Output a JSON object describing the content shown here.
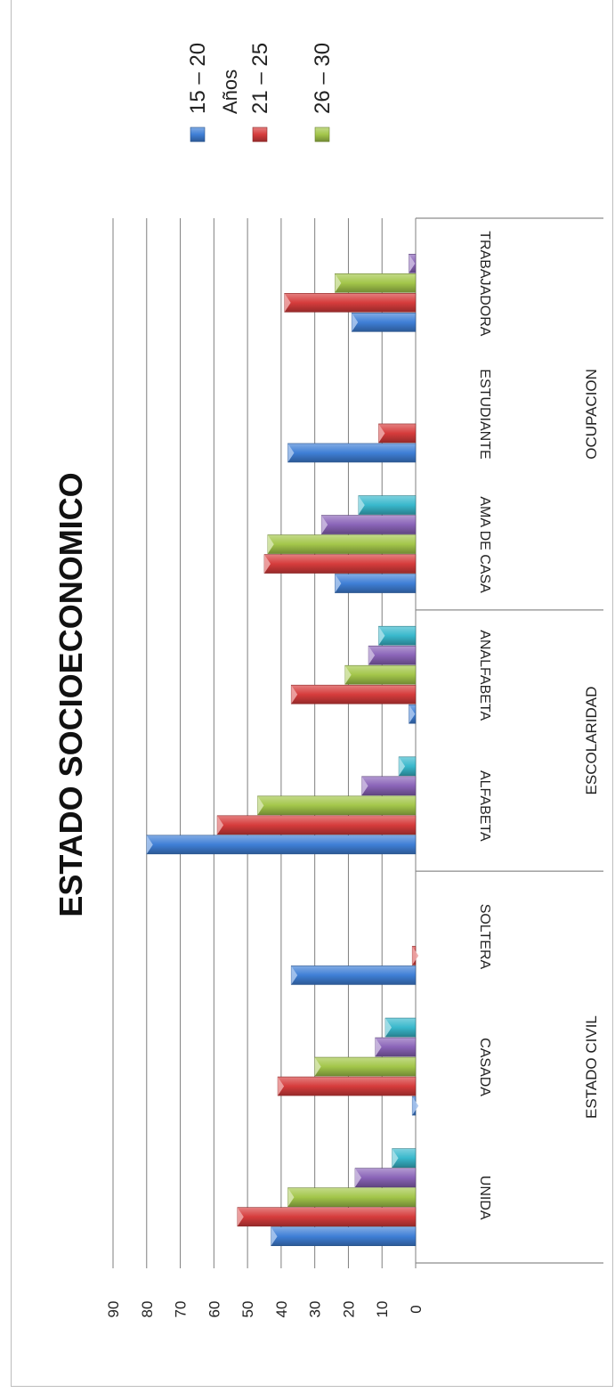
{
  "chart_data": {
    "type": "bar",
    "orientation": "rotated-90-clockwise",
    "title": "ESTADO SOCIOECONOMICO",
    "ylim": [
      0,
      90
    ],
    "yticks": [
      "0",
      "10",
      "20",
      "30",
      "40",
      "50",
      "60",
      "70",
      "80",
      "90"
    ],
    "grid": true,
    "groups": [
      {
        "name": "ESTADO CIVIL",
        "categories": [
          "UNIDA",
          "CASADA",
          "SOLTERA"
        ]
      },
      {
        "name": "ESCOLARIDAD",
        "categories": [
          "ALFABETA",
          "ANALFABETA"
        ]
      },
      {
        "name": "OCUPACION",
        "categories": [
          "AMA DE CASA",
          "ESTUDIANTE",
          "TRABAJADORA"
        ]
      }
    ],
    "categories": [
      "UNIDA",
      "CASADA",
      "SOLTERA",
      "ALFABETA",
      "ANALFABETA",
      "AMA DE CASA",
      "ESTUDIANTE",
      "TRABAJADORA"
    ],
    "series": [
      {
        "name": "15 – 20",
        "color": "#3f7fd6",
        "values": [
          43,
          1,
          37,
          80,
          2,
          24,
          38,
          19
        ]
      },
      {
        "name": "21 – 25",
        "color": "#d63c3c",
        "values": [
          53,
          41,
          1,
          59,
          37,
          45,
          11,
          39
        ]
      },
      {
        "name": "26 – 30",
        "color": "#a3c64a",
        "values": [
          38,
          30,
          0,
          47,
          21,
          44,
          0,
          24
        ]
      },
      {
        "name": "",
        "color": "#8a64b8",
        "values": [
          18,
          12,
          0,
          16,
          14,
          28,
          0,
          2
        ]
      },
      {
        "name": "",
        "color": "#39b8cc",
        "values": [
          7,
          9,
          0,
          5,
          11,
          17,
          0,
          0
        ]
      }
    ],
    "legend": {
      "title": "Años",
      "position": "top-right"
    }
  }
}
